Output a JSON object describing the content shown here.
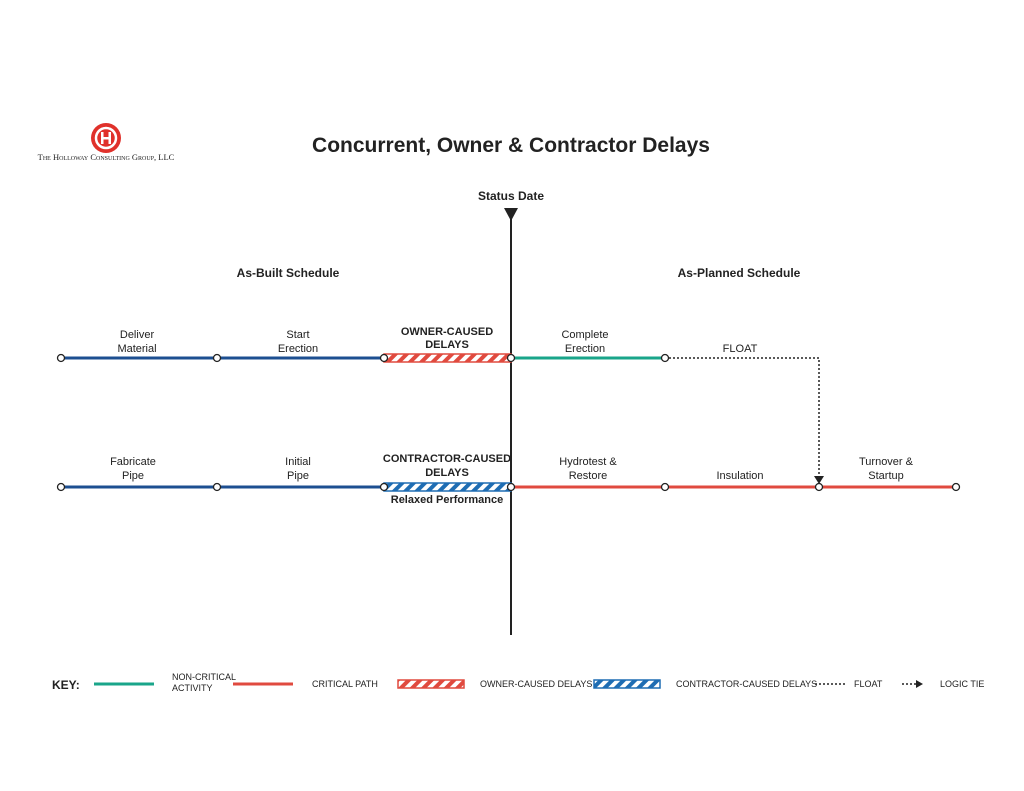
{
  "logo": {
    "company": "The Holloway Consulting Group, LLC"
  },
  "title": "Concurrent, Owner & Contractor Delays",
  "status_date": "Status Date",
  "sections": [
    "As-Built Schedule",
    "As-Planned Schedule"
  ],
  "rows": [
    {
      "activities": [
        [
          "Deliver",
          "Material"
        ],
        [
          "Start",
          "Erection"
        ],
        [
          "OWNER-CAUSED",
          "DELAYS"
        ],
        [
          "Complete",
          "Erection"
        ],
        [
          "FLOAT"
        ]
      ]
    },
    {
      "activities": [
        [
          "Fabricate",
          "Pipe"
        ],
        [
          "Initial",
          "Pipe"
        ],
        [
          "CONTRACTOR-CAUSED",
          "DELAYS"
        ],
        [
          "Hydrotest &",
          "Restore"
        ],
        [
          "Insulation"
        ],
        [
          "Turnover &",
          "Startup"
        ]
      ],
      "note": "Relaxed Performance"
    }
  ],
  "key": {
    "label": "KEY:",
    "items": [
      [
        "NON-CRITICAL",
        "ACTIVITY"
      ],
      [
        "CRITICAL PATH"
      ],
      [
        "OWNER-CAUSED DELAYS"
      ],
      [
        "CONTRACTOR-CAUSED DELAYS"
      ],
      [
        "FLOAT"
      ],
      [
        "LOGIC TIE"
      ]
    ]
  }
}
